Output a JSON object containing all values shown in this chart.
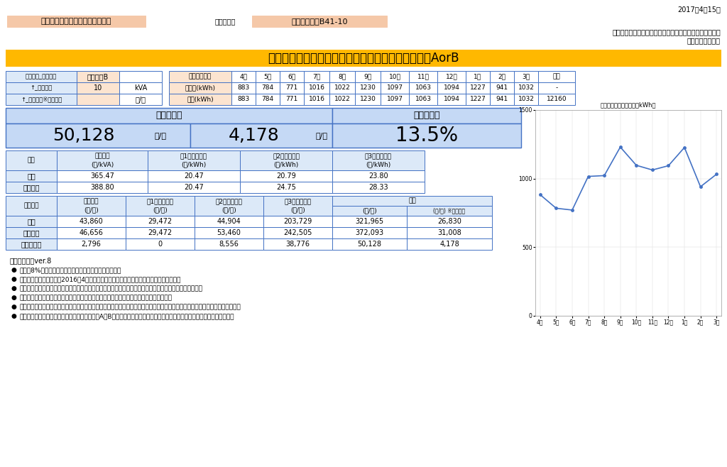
{
  "date": "2017年4月15日",
  "usage_place_label": "ご使用場所",
  "usage_place": "加工場　電灯B41-10",
  "company1": "イーレックス・スパーク・エリアマーケティング株式会社",
  "company2": "株式会社モリカワ",
  "title": "電気料金シミュレーション＿近畿エリア＿従量電灯AorB",
  "left_table_rows": [
    [
      "関西電力＿契約種別",
      "従量電灯B",
      ""
    ],
    [
      "↑＿契約容量",
      "10",
      "kVA"
    ],
    [
      "↑＿電気料金※週年平均",
      "",
      "円/月"
    ]
  ],
  "monthly_header": [
    "お客様使用量",
    "4月",
    "5月",
    "6月",
    "7月",
    "8月",
    "9月",
    "10月",
    "11月",
    "12月",
    "1月",
    "2月",
    "3月",
    "年間"
  ],
  "monthly_rows": [
    [
      "ご入力(kWh)",
      "883",
      "784",
      "771",
      "1016",
      "1022",
      "1230",
      "1097",
      "1063",
      "1094",
      "1227",
      "941",
      "1032",
      "-"
    ],
    [
      "推定(kWh)",
      "883",
      "784",
      "771",
      "1016",
      "1022",
      "1230",
      "1097",
      "1063",
      "1094",
      "1227",
      "941",
      "1032",
      "12160"
    ]
  ],
  "savings_label1": "想定削減額",
  "savings_label2": "想定削減率",
  "savings_year": "50,128",
  "savings_year_unit": "円/年",
  "savings_month": "4,178",
  "savings_month_unit": "円/月",
  "savings_rate": "13.5%",
  "unit_headers": [
    "単価",
    "基本料金\n(円/kVA)",
    "第1段従量料金\n(円/kWh)",
    "第2段従量料金\n(円/kWh)",
    "第3段従量料金\n(円/kWh)"
  ],
  "unit_rows": [
    [
      "当社",
      "365.47",
      "20.47",
      "20.79",
      "23.80"
    ],
    [
      "関西電力",
      "388.80",
      "20.47",
      "24.75",
      "28.33"
    ]
  ],
  "fee_headers_top": [
    "料金試算",
    "基本料金",
    "第1段従量料金",
    "第2段従量料金",
    "第3段従量料金",
    "合計"
  ],
  "fee_headers_bot": [
    "",
    "(円/年)",
    "(円/年)",
    "(円/年)",
    "(円/年)",
    "(円/年)",
    "(円/月) ※週年平均"
  ],
  "fee_rows": [
    [
      "当社",
      "43,860",
      "29,472",
      "44,904",
      "203,729",
      "321,965",
      "26,830"
    ],
    [
      "関西電力",
      "46,656",
      "29,472",
      "53,460",
      "242,505",
      "372,093",
      "31,008"
    ],
    [
      "想定削減額",
      "2,796",
      "0",
      "8,556",
      "38,776",
      "50,128",
      "4,178"
    ]
  ],
  "chart_data": [
    883,
    784,
    771,
    1016,
    1022,
    1230,
    1097,
    1063,
    1094,
    1227,
    941,
    1032
  ],
  "chart_months": [
    "4月",
    "5月",
    "6月",
    "7月",
    "8月",
    "9月",
    "10月",
    "11月",
    "12月",
    "1月",
    "2月",
    "3月"
  ],
  "chart_title": "月々の推定使用電力量（kWh）",
  "notes_title": "ご注意事項＿ver.8",
  "notes": [
    "消費税8%を含んだ単価、料金試算を提示しております。",
    "供給開始日はお申込後、2016年4月以降の最初の関西電力の検針日を予定しております。",
    "このシミュレーションは参考値ですので、お客様のご使用状況が変わった場合、各試算結果が変わります。",
    "試算結果には再生可能エネルギー発電促進賦課金・燃料費調整額は含まれておりません。",
    "供給開始後は再生可能エネルギー発電促進賦課金・燃料費調整額を加味してご請求いたします。（算定式は関西電力と同一です）",
    "関西電力がこの試算を行った日以降に従量電灯A、Bの料金改定を発表した場合、この試算内容を見直すことがございます。"
  ],
  "bg_color": "#ffffff",
  "header_bg": "#FFB800",
  "light_blue": "#dce9f8",
  "light_orange": "#fce4d0",
  "border_color": "#4472c4",
  "savings_bg": "#c5d9f5",
  "chart_line_color": "#4472c4"
}
